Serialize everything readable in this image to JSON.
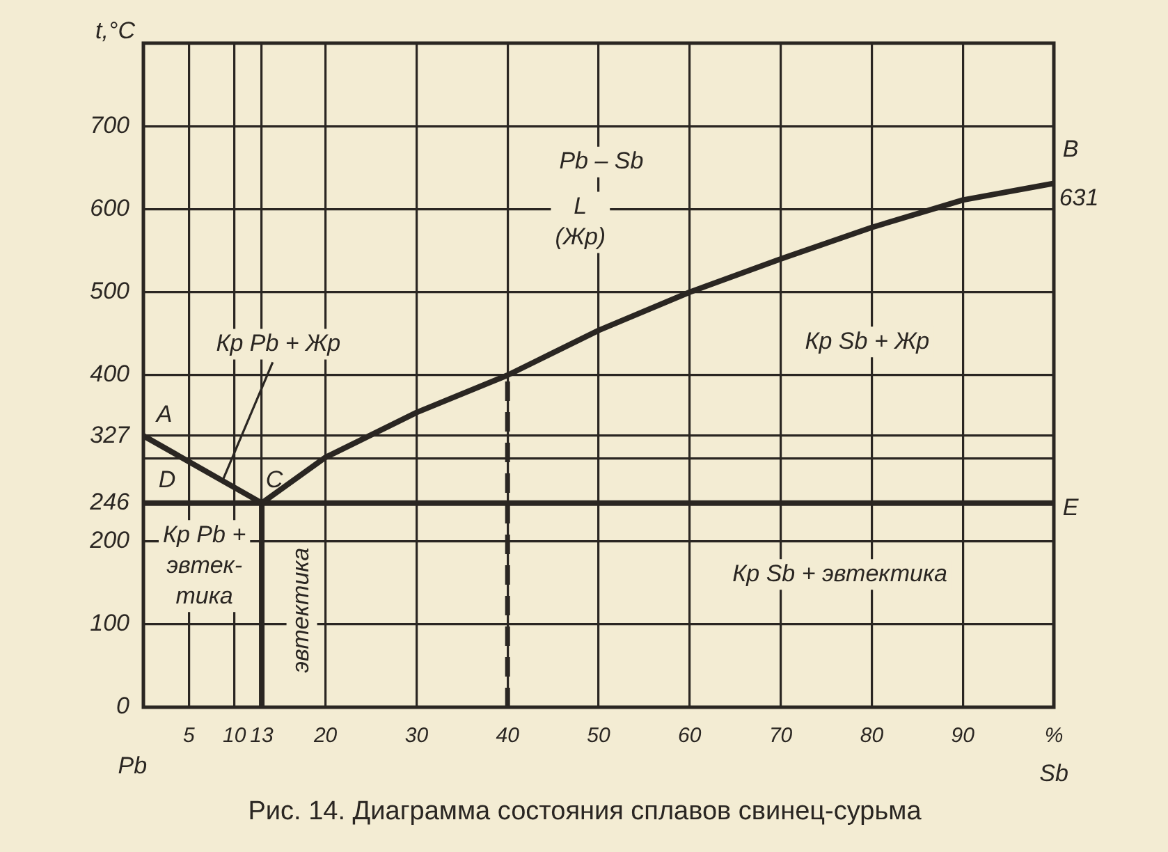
{
  "chart_data": {
    "type": "line",
    "title": "Рис. 14. Диаграмма состояния сплавов свинец-сурьма",
    "xlabel": "Sb",
    "ylabel": "t,°C",
    "xlim": [
      0,
      100
    ],
    "ylim": [
      0,
      800
    ],
    "xticks": [
      5,
      10,
      13,
      20,
      30,
      40,
      50,
      60,
      70,
      80,
      90,
      {
        "value": 100,
        "label": "%"
      }
    ],
    "yticks": [
      0,
      100,
      200,
      246,
      {
        "value": 300,
        "label": null
      },
      327,
      400,
      500,
      600,
      700
    ],
    "grid": true,
    "legend": false,
    "marker": "none",
    "series": [
      {
        "color": "#2a2622",
        "x": [
          0,
          13,
          20,
          30,
          40,
          50,
          60,
          70,
          80,
          90,
          100
        ],
        "values": [
          327,
          246,
          301,
          355,
          400,
          454,
          500,
          540,
          578,
          611,
          631
        ]
      },
      {
        "color": "#2a2622",
        "x": [
          0,
          100
        ],
        "values": [
          246,
          246
        ]
      },
      {
        "color": "#2a2622",
        "x": [
          13,
          13
        ],
        "values": [
          0,
          246
        ]
      },
      {
        "color": "#2a2622",
        "x": [
          40,
          40
        ],
        "values": [
          0,
          400
        ],
        "line_style": "dashed"
      }
    ],
    "annotations": [
      "Pb",
      {
        "text": "Кр Pb + Жр",
        "x": 8.7,
        "y": 273
      },
      "Pb – Sb",
      "L\n(Жр)",
      "Кр Sb + Жр",
      "Кр Pb +\nэвтек-\nтика",
      "эвтектика",
      "Кр Sb + эвтектика",
      {
        "text": "A",
        "x": 0,
        "y": 327
      },
      {
        "text": "D",
        "x": 0,
        "y": 246
      },
      {
        "text": "C",
        "x": 13,
        "y": 246
      },
      {
        "text": "E",
        "x": 100,
        "y": 246
      },
      {
        "text": "B",
        "x": 100,
        "y": 631
      },
      {
        "text": "631",
        "x": 100,
        "y": 631
      }
    ]
  }
}
